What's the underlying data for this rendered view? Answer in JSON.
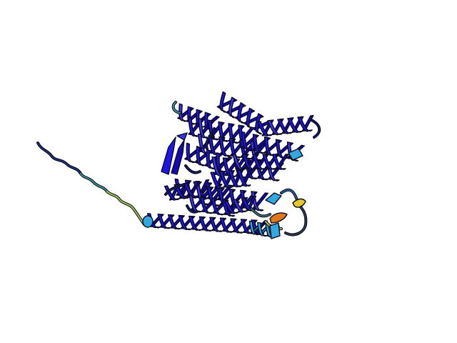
{
  "image": {
    "subject": "protein-ribbon",
    "background": "#ffffff"
  },
  "colors": {
    "outline": "#0b0b1e",
    "helix": "#1f15ea",
    "helix_shade": "#1408b8",
    "helix_light": "#3a33f5",
    "coil_dark": "#141a5a",
    "medium": "#32a8e0",
    "low": "#7cc3a2",
    "yellow": "#e6c82a",
    "orange": "#e0781e"
  }
}
